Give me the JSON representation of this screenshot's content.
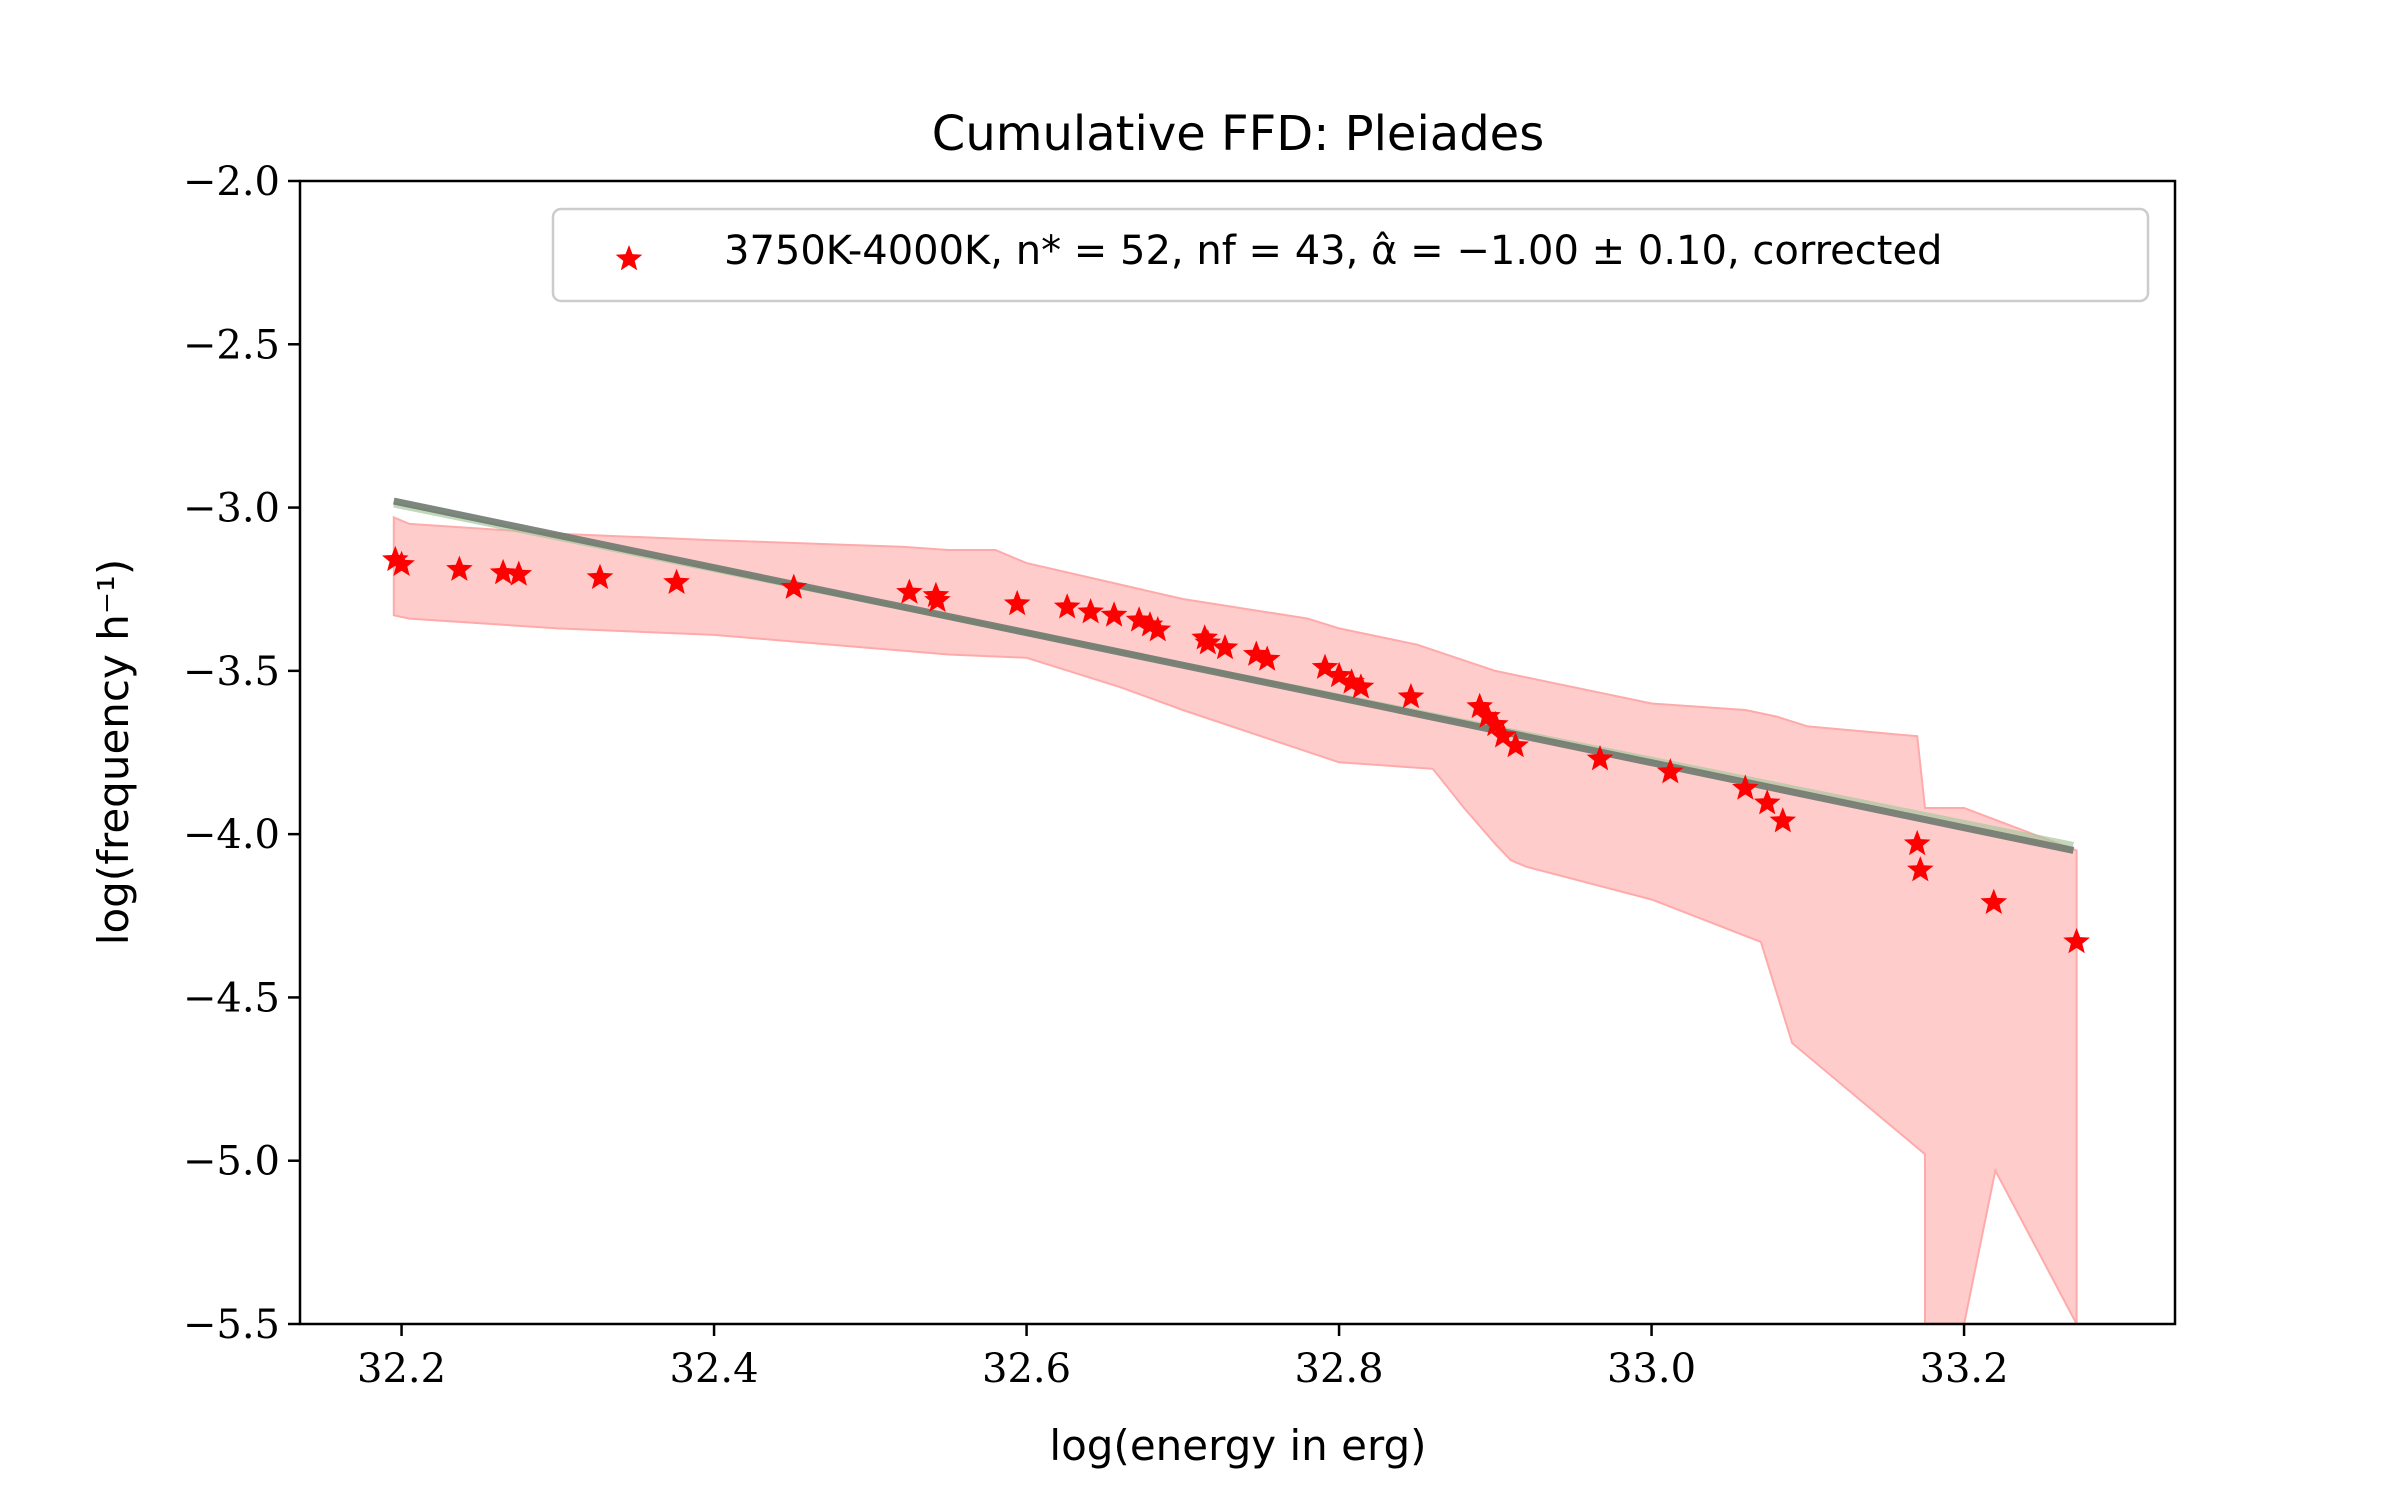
{
  "chart_data": {
    "type": "scatter",
    "title": "Cumulative FFD: Pleiades",
    "xlabel": "log(energy in erg)",
    "ylabel": "log(frequency h⁻¹)",
    "xlim": [
      32.135,
      33.335
    ],
    "ylim": [
      -5.5,
      -2.0
    ],
    "xticks": [
      32.2,
      32.4,
      32.6,
      32.8,
      33.0,
      33.2
    ],
    "yticks": [
      -2.0,
      -2.5,
      -3.0,
      -3.5,
      -4.0,
      -4.5,
      -5.0,
      -5.5
    ],
    "xtick_labels": [
      "32.2",
      "32.4",
      "32.6",
      "32.8",
      "33.0",
      "33.2"
    ],
    "ytick_labels": [
      "−2.0",
      "−2.5",
      "−3.0",
      "−3.5",
      "−4.0",
      "−4.5",
      "−5.0",
      "−5.5"
    ],
    "legend": {
      "placement": "top-right",
      "label": "3750K-4000K, n* = 52, nf = 43, α̂ = −1.00 ± 0.10, corrected"
    },
    "colors": {
      "points": "#ff0000",
      "band_fill": "#ffcccc",
      "band_edge": "#ffaaaa",
      "fit_line": "#6f7a6f",
      "fit_line_alt": "#a8c8a0"
    },
    "series": [
      {
        "name": "3750K-4000K, n* = 52, nf = 43, α̂ = −1.00 ± 0.10, corrected",
        "marker": "star",
        "points": [
          [
            32.196,
            -3.16
          ],
          [
            32.2,
            -3.175
          ],
          [
            32.237,
            -3.19
          ],
          [
            32.265,
            -3.2
          ],
          [
            32.275,
            -3.205
          ],
          [
            32.327,
            -3.215
          ],
          [
            32.376,
            -3.23
          ],
          [
            32.451,
            -3.245
          ],
          [
            32.525,
            -3.26
          ],
          [
            32.542,
            -3.27
          ],
          [
            32.543,
            -3.285
          ],
          [
            32.594,
            -3.295
          ],
          [
            32.626,
            -3.305
          ],
          [
            32.641,
            -3.32
          ],
          [
            32.656,
            -3.33
          ],
          [
            32.672,
            -3.345
          ],
          [
            32.679,
            -3.36
          ],
          [
            32.684,
            -3.375
          ],
          [
            32.714,
            -3.4
          ],
          [
            32.716,
            -3.415
          ],
          [
            32.727,
            -3.43
          ],
          [
            32.747,
            -3.45
          ],
          [
            32.754,
            -3.465
          ],
          [
            32.791,
            -3.49
          ],
          [
            32.8,
            -3.515
          ],
          [
            32.808,
            -3.535
          ],
          [
            32.814,
            -3.55
          ],
          [
            32.846,
            -3.58
          ],
          [
            32.89,
            -3.61
          ],
          [
            32.895,
            -3.64
          ],
          [
            32.9,
            -3.665
          ],
          [
            32.905,
            -3.7
          ],
          [
            32.913,
            -3.73
          ],
          [
            32.967,
            -3.77
          ],
          [
            33.012,
            -3.81
          ],
          [
            33.06,
            -3.86
          ],
          [
            33.074,
            -3.905
          ],
          [
            33.084,
            -3.96
          ],
          [
            33.17,
            -4.03
          ],
          [
            33.172,
            -4.11
          ],
          [
            33.219,
            -4.21
          ],
          [
            33.272,
            -4.33
          ]
        ]
      }
    ],
    "fit_line": {
      "slope": -1.0,
      "x": [
        32.195,
        33.27
      ],
      "y": [
        -2.98,
        -4.05
      ]
    },
    "uncertainty_band": {
      "upper": [
        [
          32.195,
          -3.03
        ],
        [
          32.205,
          -3.05
        ],
        [
          32.3,
          -3.08
        ],
        [
          32.4,
          -3.1
        ],
        [
          32.52,
          -3.12
        ],
        [
          32.55,
          -3.13
        ],
        [
          32.58,
          -3.13
        ],
        [
          32.6,
          -3.17
        ],
        [
          32.7,
          -3.28
        ],
        [
          32.78,
          -3.34
        ],
        [
          32.8,
          -3.37
        ],
        [
          32.85,
          -3.42
        ],
        [
          32.9,
          -3.5
        ],
        [
          33.0,
          -3.6
        ],
        [
          33.06,
          -3.62
        ],
        [
          33.08,
          -3.64
        ],
        [
          33.1,
          -3.67
        ],
        [
          33.17,
          -3.7
        ],
        [
          33.175,
          -3.92
        ],
        [
          33.2,
          -3.92
        ],
        [
          33.272,
          -4.05
        ]
      ],
      "lower": [
        [
          33.272,
          -5.5
        ],
        [
          33.22,
          -5.03
        ],
        [
          33.2,
          -5.5
        ],
        [
          33.175,
          -5.5
        ],
        [
          33.175,
          -4.98
        ],
        [
          33.09,
          -4.64
        ],
        [
          33.07,
          -4.33
        ],
        [
          33.0,
          -4.2
        ],
        [
          32.92,
          -4.1
        ],
        [
          32.91,
          -4.08
        ],
        [
          32.9,
          -4.03
        ],
        [
          32.88,
          -3.92
        ],
        [
          32.86,
          -3.8
        ],
        [
          32.8,
          -3.78
        ],
        [
          32.7,
          -3.62
        ],
        [
          32.66,
          -3.55
        ],
        [
          32.62,
          -3.49
        ],
        [
          32.6,
          -3.46
        ],
        [
          32.55,
          -3.45
        ],
        [
          32.5,
          -3.43
        ],
        [
          32.4,
          -3.39
        ],
        [
          32.3,
          -3.37
        ],
        [
          32.205,
          -3.34
        ],
        [
          32.195,
          -3.33
        ]
      ]
    }
  }
}
